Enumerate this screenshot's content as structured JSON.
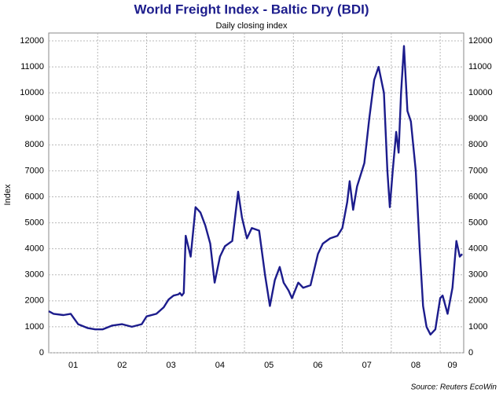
{
  "chart_data": {
    "type": "line",
    "title": "World Freight Index - Baltic Dry (BDI)",
    "subtitle": "Daily closing index",
    "y_label": "Index",
    "source": "Source: Reuters EcoWin",
    "color": "#1c1c8c",
    "grid": true,
    "x": [
      2001.0,
      2001.1,
      2001.3,
      2001.45,
      2001.6,
      2001.8,
      2001.95,
      2002.1,
      2002.3,
      2002.5,
      2002.7,
      2002.9,
      2003.0,
      2003.2,
      2003.35,
      2003.45,
      2003.55,
      2003.65,
      2003.68,
      2003.72,
      2003.76,
      2003.8,
      2003.9,
      2004.0,
      2004.1,
      2004.2,
      2004.3,
      2004.39,
      2004.5,
      2004.6,
      2004.75,
      2004.87,
      2004.95,
      2005.05,
      2005.15,
      2005.3,
      2005.42,
      2005.52,
      2005.62,
      2005.72,
      2005.8,
      2005.9,
      2005.97,
      2006.1,
      2006.2,
      2006.35,
      2006.5,
      2006.6,
      2006.75,
      2006.9,
      2007.0,
      2007.1,
      2007.15,
      2007.22,
      2007.3,
      2007.45,
      2007.55,
      2007.65,
      2007.74,
      2007.85,
      2007.92,
      2007.97,
      2008.03,
      2008.1,
      2008.15,
      2008.2,
      2008.26,
      2008.33,
      2008.4,
      2008.5,
      2008.58,
      2008.65,
      2008.72,
      2008.8,
      2008.9,
      2009.0,
      2009.05,
      2009.15,
      2009.25,
      2009.33,
      2009.4,
      2009.45
    ],
    "values": [
      1600,
      1500,
      1450,
      1500,
      1100,
      950,
      900,
      900,
      1050,
      1100,
      1000,
      1100,
      1400,
      1500,
      1750,
      2050,
      2200,
      2250,
      2300,
      2200,
      2300,
      4500,
      3700,
      5600,
      5400,
      4900,
      4200,
      2700,
      3700,
      4100,
      4300,
      6200,
      5200,
      4400,
      4800,
      4700,
      3000,
      1800,
      2800,
      3300,
      2700,
      2400,
      2100,
      2700,
      2500,
      2600,
      3800,
      4200,
      4400,
      4500,
      4800,
      5800,
      6600,
      5500,
      6400,
      7300,
      9000,
      10500,
      11000,
      10000,
      7000,
      5600,
      7000,
      8500,
      7700,
      10000,
      11800,
      9300,
      8900,
      7000,
      4000,
      1800,
      1000,
      700,
      900,
      2100,
      2200,
      1500,
      2500,
      4300,
      3700,
      3800
    ],
    "xlim": [
      2001.0,
      2009.48
    ],
    "xticks": [
      {
        "value": 2001.5,
        "label": "01"
      },
      {
        "value": 2002.5,
        "label": "02"
      },
      {
        "value": 2003.5,
        "label": "03"
      },
      {
        "value": 2004.5,
        "label": "04"
      },
      {
        "value": 2005.5,
        "label": "05"
      },
      {
        "value": 2006.5,
        "label": "06"
      },
      {
        "value": 2007.5,
        "label": "07"
      },
      {
        "value": 2008.5,
        "label": "08"
      },
      {
        "value": 2009.25,
        "label": "09"
      }
    ],
    "x_gridlines": [
      2002,
      2003,
      2004,
      2005,
      2006,
      2007,
      2008,
      2009
    ],
    "ylim": [
      0,
      12000
    ],
    "yticks": [
      0,
      1000,
      2000,
      3000,
      4000,
      5000,
      6000,
      7000,
      8000,
      9000,
      10000,
      11000,
      12000
    ]
  }
}
